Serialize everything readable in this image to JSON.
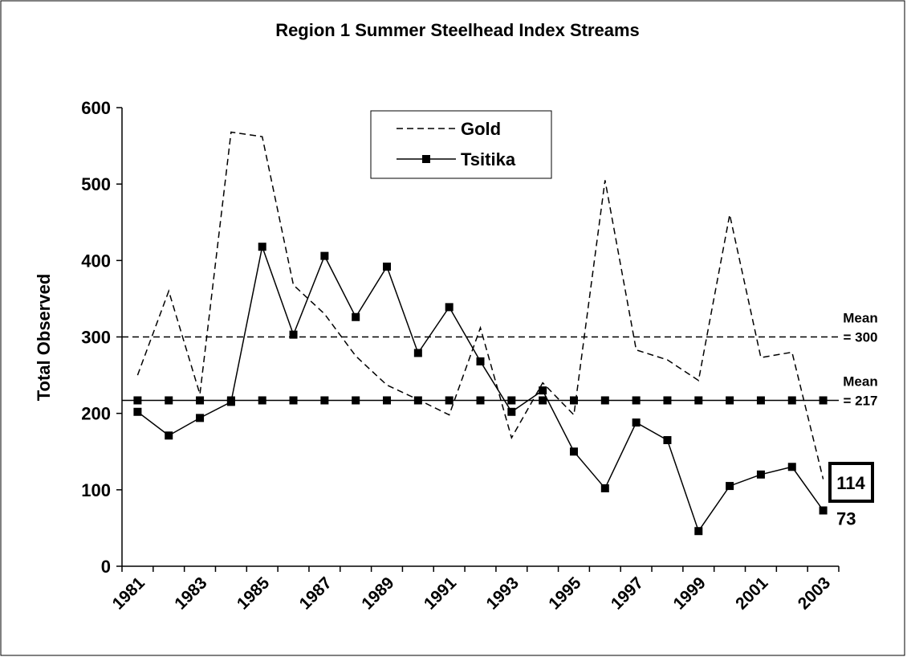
{
  "chart_data": {
    "type": "line",
    "title": "Region 1 Summer Steelhead Index Streams",
    "y_label": "Total Observed",
    "categories": [
      "1981",
      null,
      "1983",
      null,
      "1985",
      null,
      "1987",
      null,
      "1989",
      null,
      "1991",
      null,
      "1993",
      null,
      "1995",
      null,
      "1997",
      null,
      "1999",
      null,
      "2001",
      null,
      "2003"
    ],
    "ylim": [
      0,
      600
    ],
    "yticks": [
      0,
      100,
      200,
      300,
      400,
      500,
      600
    ],
    "series": [
      {
        "name": "Gold",
        "color": "#000000",
        "dash": true,
        "markers": false,
        "label_last": true,
        "values": [
          250,
          360,
          225,
          568,
          562,
          368,
          330,
          275,
          237,
          218,
          198,
          312,
          168,
          240,
          198,
          505,
          283,
          270,
          243,
          460,
          273,
          280,
          114
        ]
      },
      {
        "name": "Tsitika",
        "color": "#000000",
        "dash": false,
        "markers": true,
        "label_last": true,
        "values": [
          202,
          171,
          194,
          215,
          418,
          303,
          406,
          326,
          392,
          279,
          339,
          268,
          202,
          230,
          150,
          102,
          188,
          165,
          46,
          105,
          120,
          130,
          73
        ]
      }
    ],
    "reference_lines": [
      {
        "value": 300,
        "dash": true,
        "markers": false,
        "label": [
          "Mean",
          "= 300"
        ]
      },
      {
        "value": 217,
        "dash": false,
        "markers": true,
        "label": [
          "Mean",
          "= 217"
        ]
      }
    ]
  }
}
